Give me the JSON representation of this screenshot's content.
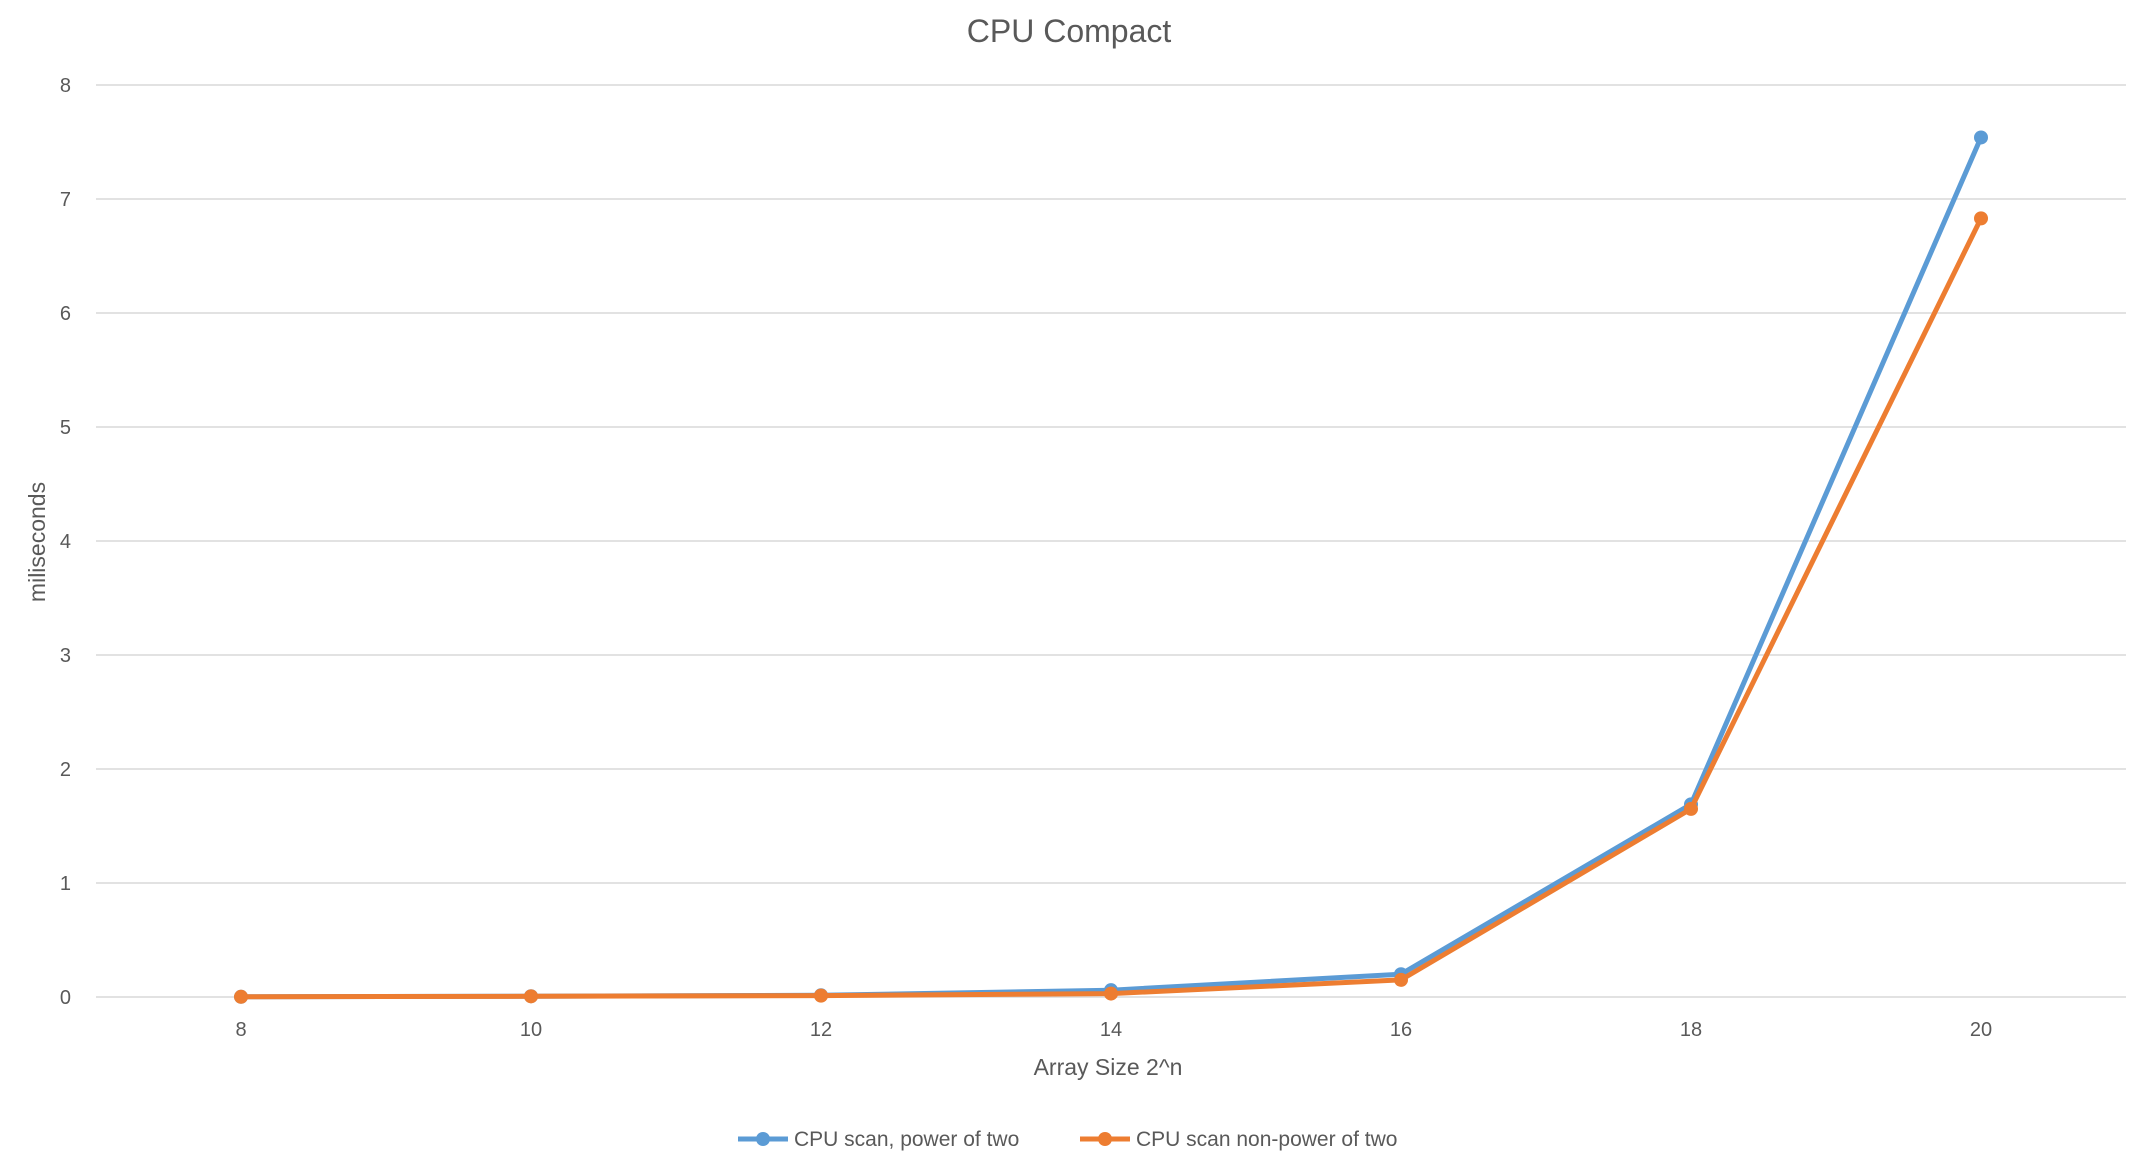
{
  "chart_data": {
    "type": "line",
    "title": "CPU Compact",
    "xlabel": "Array Size 2^n",
    "ylabel": "miliseconds",
    "x": [
      8,
      10,
      12,
      14,
      16,
      18,
      20
    ],
    "xlim": [
      7,
      21
    ],
    "ylim": [
      0,
      8
    ],
    "yticks": [
      0,
      1,
      2,
      3,
      4,
      5,
      6,
      7,
      8
    ],
    "xticks": [
      8,
      10,
      12,
      14,
      16,
      18,
      20
    ],
    "grid": "horizontal",
    "legend": "bottom-center",
    "series": [
      {
        "name": "CPU scan, power of two",
        "color": "#5b9bd5",
        "values": [
          0.002,
          0.007,
          0.015,
          0.06,
          0.2,
          1.69,
          7.54
        ]
      },
      {
        "name": "CPU scan non-power of two",
        "color": "#ed7d31",
        "values": [
          0.002,
          0.006,
          0.012,
          0.03,
          0.15,
          1.65,
          6.83
        ]
      }
    ]
  }
}
